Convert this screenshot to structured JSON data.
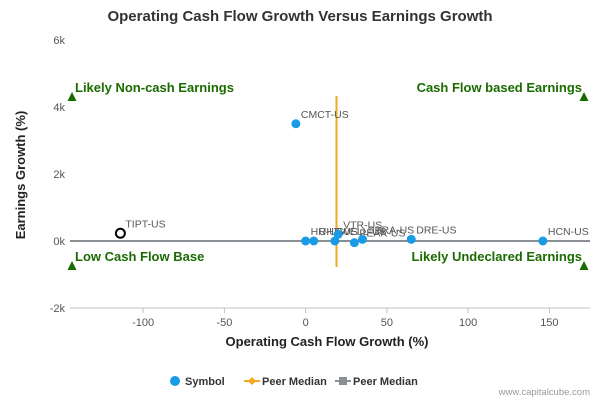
{
  "chart_data": {
    "type": "scatter",
    "title": "Operating Cash Flow Growth Versus Earnings Growth",
    "xlabel": "Operating Cash Flow Growth (%)",
    "ylabel": "Earnings Growth (%)",
    "xlim": [
      -145,
      175
    ],
    "ylim": [
      -2000,
      6000
    ],
    "x_ticks": [
      -100,
      -50,
      0,
      50,
      100,
      150
    ],
    "y_ticks": [
      -2000,
      0,
      2000,
      4000,
      6000
    ],
    "y_tick_labels": [
      "-2k",
      "0k",
      "2k",
      "4k",
      "6k"
    ],
    "grid": false,
    "legend_position": "bottom",
    "symbol_color": "#1a9be6",
    "x_median_color": "#f5a623",
    "y_median_color": "#8a8f96",
    "quadrant_color": "#1a6b00",
    "quadrant_labels": {
      "top_left": "Likely Non-cash Earnings",
      "top_right": "Cash Flow based Earnings",
      "bottom_left": "Low Cash Flow Base",
      "bottom_right": "Likely Undeclared Earnings"
    },
    "points": [
      {
        "label": "TIPT-US",
        "x": -114,
        "y": 230,
        "highlight": true
      },
      {
        "label": "CMCT-US",
        "x": -6,
        "y": 3500
      },
      {
        "label": "HR-US",
        "x": 0,
        "y": 0
      },
      {
        "label": "UHT-US",
        "x": 5,
        "y": 0
      },
      {
        "label": "WELL-US",
        "x": 18,
        "y": 0
      },
      {
        "label": "VTR-US",
        "x": 20,
        "y": 200
      },
      {
        "label": "PEAK-US",
        "x": 30,
        "y": -50
      },
      {
        "label": "SBRA-US",
        "x": 35,
        "y": 50
      },
      {
        "label": "DRE-US",
        "x": 65,
        "y": 50
      },
      {
        "label": "HCN-US",
        "x": 146,
        "y": 0
      }
    ],
    "peer_median_x": 19,
    "peer_median_y": 0,
    "legend": [
      {
        "name": "Symbol",
        "marker": "circle"
      },
      {
        "name": "Peer Median",
        "marker": "diamond"
      },
      {
        "name": "Peer Median",
        "marker": "square"
      }
    ]
  },
  "credit": "www.capitalcube.com"
}
